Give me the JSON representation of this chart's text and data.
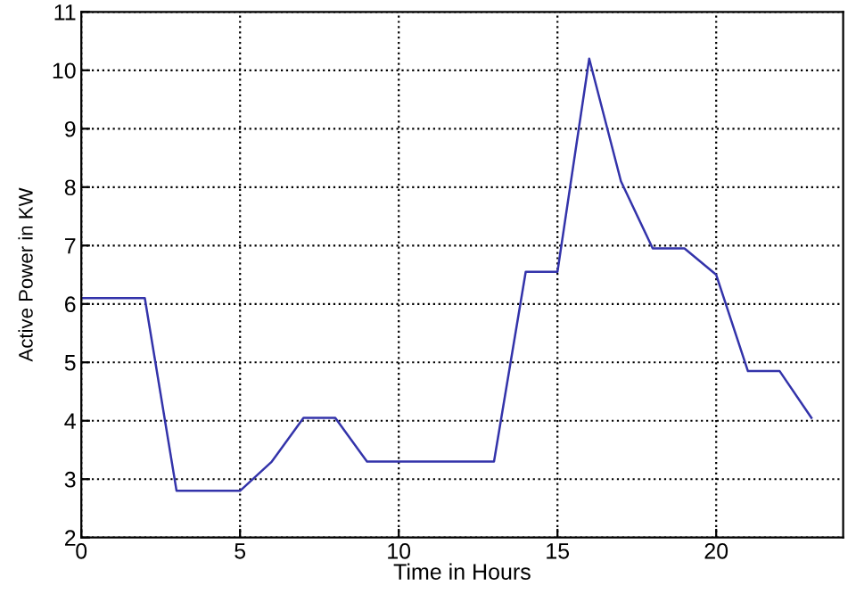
{
  "chart_data": {
    "type": "line",
    "xlabel": "Time in Hours",
    "ylabel": "Active Power in KW",
    "x": [
      0,
      1,
      2,
      3,
      4,
      5,
      6,
      7,
      8,
      9,
      10,
      11,
      12,
      13,
      14,
      15,
      16,
      17,
      18,
      19,
      20,
      21,
      22,
      23
    ],
    "series": [
      {
        "color": "#3333aa",
        "values": [
          6.1,
          6.1,
          6.1,
          2.8,
          2.8,
          2.8,
          3.3,
          4.05,
          4.05,
          3.3,
          3.3,
          3.3,
          3.3,
          3.3,
          6.55,
          6.55,
          10.2,
          8.1,
          6.95,
          6.95,
          6.5,
          4.85,
          4.85,
          4.05
        ]
      }
    ],
    "xlim": [
      0,
      24
    ],
    "ylim": [
      2,
      11
    ],
    "xticks": [
      0,
      5,
      10,
      15,
      20
    ],
    "yticks": [
      2,
      3,
      4,
      5,
      6,
      7,
      8,
      9,
      10,
      11
    ],
    "grid": true,
    "marker": "none",
    "line_style": "solid"
  }
}
